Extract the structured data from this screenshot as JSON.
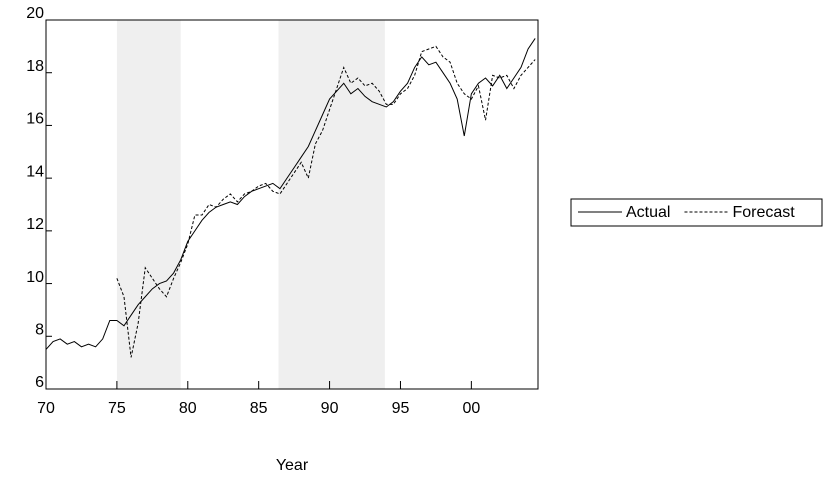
{
  "chart_data": {
    "type": "line",
    "x_label": "Year",
    "x": [
      1970,
      1970.5,
      1971,
      1971.5,
      1972,
      1972.5,
      1973,
      1973.5,
      1974,
      1974.5,
      1975,
      1975.5,
      1976,
      1976.5,
      1977,
      1977.5,
      1978,
      1978.5,
      1979,
      1979.5,
      1980,
      1980.5,
      1981,
      1981.5,
      1982,
      1982.5,
      1983,
      1983.5,
      1984,
      1984.5,
      1985,
      1985.5,
      1986,
      1986.5,
      1987,
      1987.5,
      1988,
      1988.5,
      1989,
      1989.5,
      1990,
      1990.5,
      1991,
      1991.5,
      1992,
      1992.5,
      1993,
      1993.5,
      1994,
      1994.5,
      1995,
      1995.5,
      1996,
      1996.5,
      1997,
      1997.5,
      1998,
      1998.5,
      1999,
      1999.5,
      2000,
      2000.5,
      2001,
      2001.5,
      2002,
      2002.5,
      2003,
      2003.5,
      2004,
      2004.5
    ],
    "series": [
      {
        "name": "Actual",
        "color": "#000000",
        "dash": false,
        "values": [
          7.5,
          7.8,
          7.9,
          7.7,
          7.8,
          7.6,
          7.7,
          7.6,
          7.9,
          8.6,
          8.6,
          8.4,
          8.8,
          9.2,
          9.5,
          9.8,
          10.0,
          10.1,
          10.4,
          10.9,
          11.6,
          12.0,
          12.4,
          12.7,
          12.9,
          13.0,
          13.1,
          13.0,
          13.3,
          13.5,
          13.6,
          13.7,
          13.8,
          13.6,
          14.0,
          14.4,
          14.8,
          15.2,
          15.8,
          16.4,
          17.0,
          17.3,
          17.6,
          17.2,
          17.4,
          17.1,
          16.9,
          16.8,
          16.7,
          16.9,
          17.3,
          17.6,
          18.2,
          18.6,
          18.3,
          18.4,
          18.0,
          17.6,
          17.0,
          15.6,
          17.2,
          17.6,
          17.8,
          17.5,
          17.9,
          17.4,
          17.8,
          18.2,
          18.9,
          19.3
        ]
      },
      {
        "name": "Forecast",
        "color": "#000000",
        "dash": true,
        "values": [
          null,
          null,
          null,
          null,
          null,
          null,
          null,
          null,
          null,
          null,
          10.2,
          9.5,
          7.2,
          8.5,
          10.6,
          10.2,
          9.8,
          9.5,
          10.2,
          10.8,
          11.5,
          12.6,
          12.6,
          13.0,
          12.9,
          13.2,
          13.4,
          13.1,
          13.4,
          13.5,
          13.7,
          13.8,
          13.5,
          13.4,
          13.8,
          14.2,
          14.6,
          14.0,
          15.3,
          15.8,
          16.6,
          17.4,
          18.2,
          17.6,
          17.8,
          17.5,
          17.6,
          17.3,
          16.8,
          16.8,
          17.2,
          17.4,
          17.9,
          18.8,
          18.9,
          19.0,
          18.6,
          18.4,
          17.6,
          17.2,
          17.0,
          17.5,
          16.2,
          17.9,
          17.8,
          17.9,
          17.4,
          17.9,
          18.2,
          18.5
        ]
      }
    ],
    "shaded_periods": [
      [
        1975,
        1979.5
      ],
      [
        1986.4,
        1993.9
      ]
    ],
    "xlim": [
      1970,
      2004.7
    ],
    "xticks": [
      {
        "value": 1970,
        "label": "70"
      },
      {
        "value": 1975,
        "label": "75"
      },
      {
        "value": 1980,
        "label": "80"
      },
      {
        "value": 1985,
        "label": "85"
      },
      {
        "value": 1990,
        "label": "90"
      },
      {
        "value": 1995,
        "label": "95"
      },
      {
        "value": 2000,
        "label": "00"
      }
    ],
    "ylim": [
      6,
      20
    ],
    "yticks": [
      6,
      8,
      10,
      12,
      14,
      16,
      18,
      20
    ],
    "grid": false,
    "legend": "right"
  }
}
